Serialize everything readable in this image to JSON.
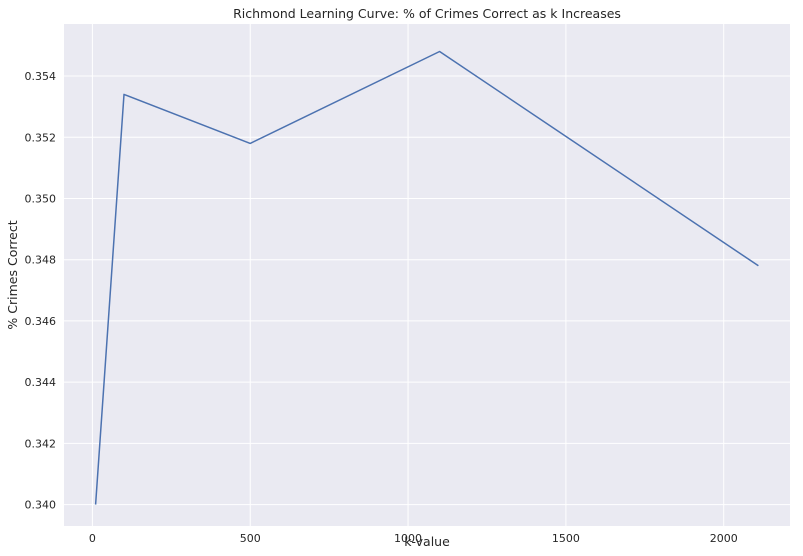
{
  "chart_data": {
    "type": "line",
    "title": "Richmond Learning Curve: % of Crimes Correct as k Increases",
    "xlabel": "k-value",
    "ylabel": "% Crimes Correct",
    "xlim": [
      -90,
      2210
    ],
    "ylim": [
      0.3393,
      0.3557
    ],
    "xticks": [
      0,
      500,
      1000,
      1500,
      2000
    ],
    "yticks": [
      0.34,
      0.342,
      0.344,
      0.346,
      0.348,
      0.35,
      0.352,
      0.354
    ],
    "grid": true,
    "series": [
      {
        "x": [
          10,
          100,
          500,
          1100,
          2110
        ],
        "y": [
          0.34,
          0.3534,
          0.3518,
          0.3548,
          0.3478
        ]
      }
    ]
  },
  "colors": {
    "background": "#eaeaf2",
    "grid": "#ffffff",
    "line": "#4c72b0"
  }
}
